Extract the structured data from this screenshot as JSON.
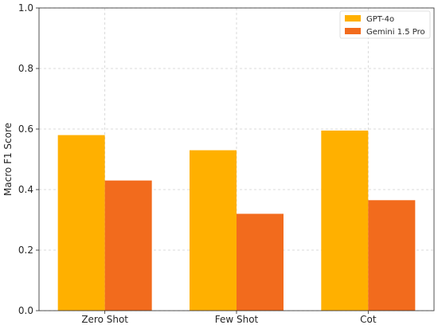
{
  "chart_data": {
    "type": "bar",
    "title": "",
    "xlabel": "",
    "ylabel": "Macro F1 Score",
    "ylim": [
      0,
      1.0
    ],
    "yticks": [
      "0.0",
      "0.2",
      "0.4",
      "0.6",
      "0.8",
      "1.0"
    ],
    "categories": [
      "Zero Shot",
      "Few Shot",
      "Cot"
    ],
    "grid": true,
    "legend_position": "top-right",
    "series": [
      {
        "name": "GPT-4o",
        "color": "#FFB000",
        "values": [
          0.58,
          0.53,
          0.595
        ]
      },
      {
        "name": "Gemini 1.5 Pro",
        "color": "#F26B1D",
        "values": [
          0.43,
          0.32,
          0.365
        ]
      }
    ]
  }
}
